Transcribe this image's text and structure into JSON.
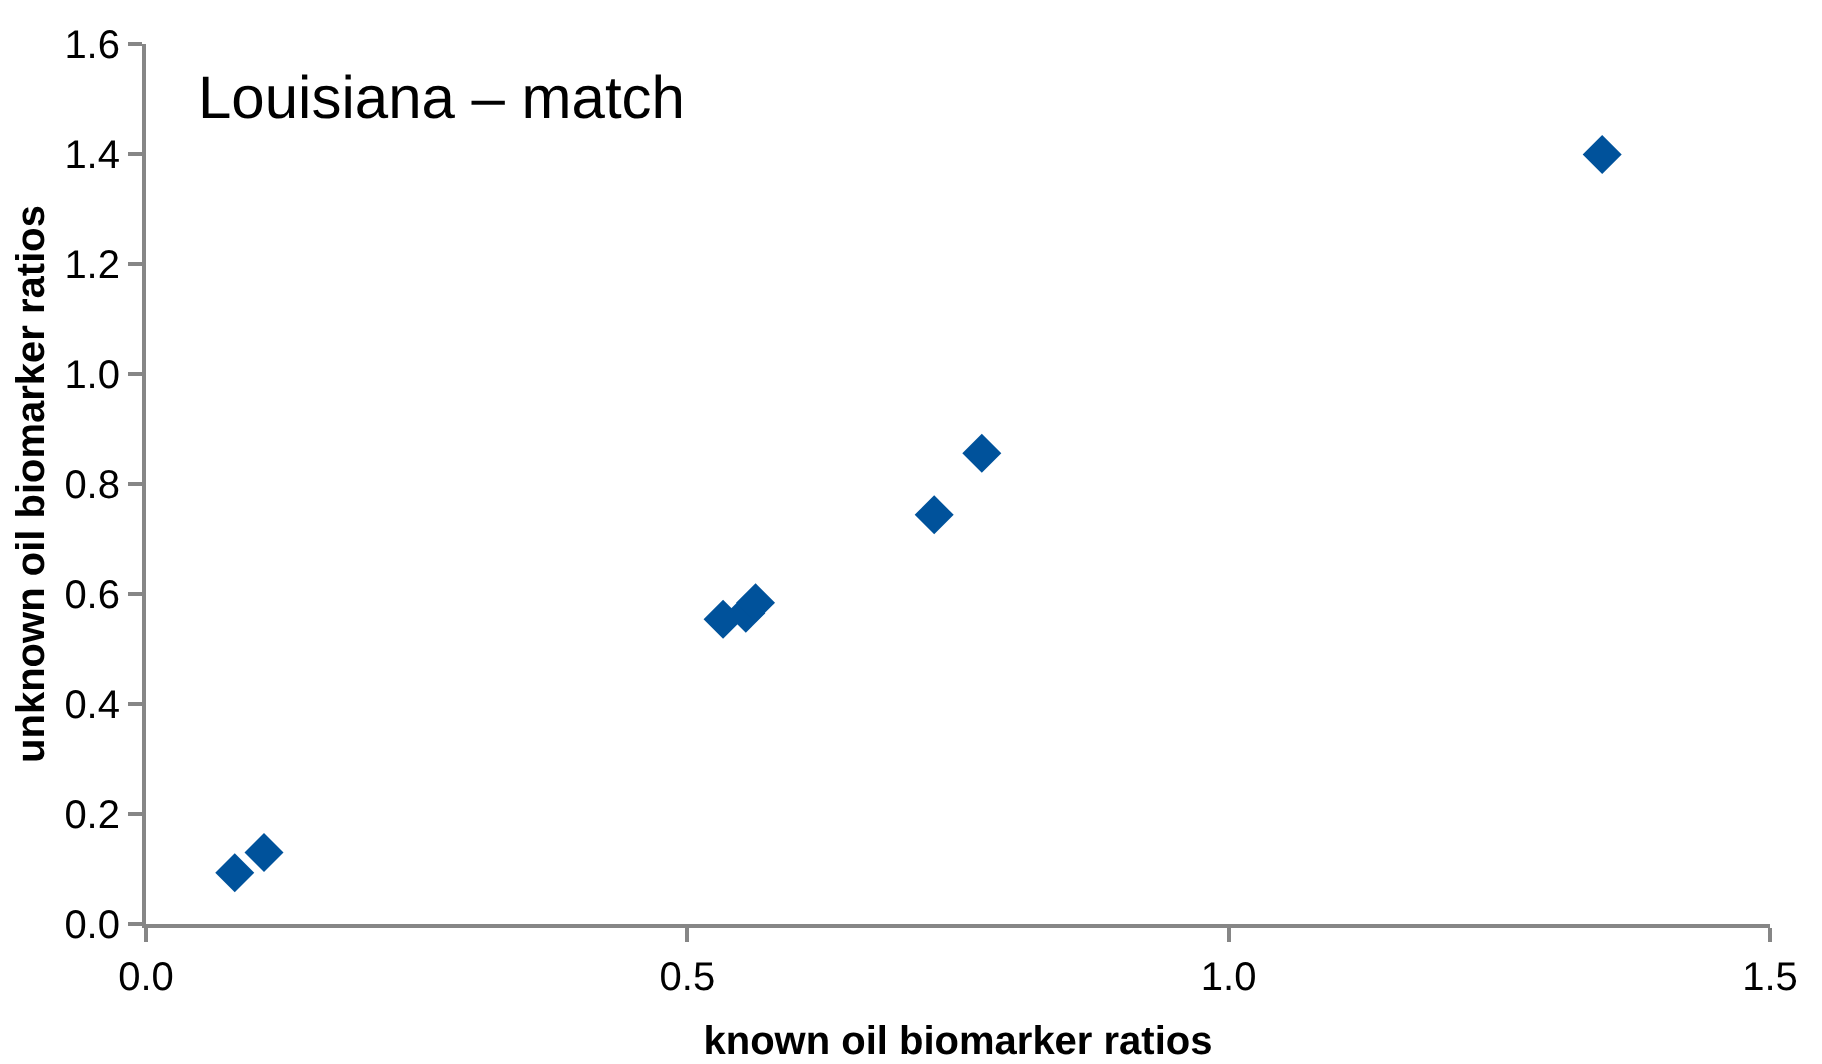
{
  "chart_data": {
    "type": "scatter",
    "title": "Louisiana – match",
    "xlabel": "known oil biomarker ratios",
    "ylabel": "unknown oil biomarker ratios",
    "x": [
      0.082,
      0.109,
      0.533,
      0.554,
      0.563,
      0.728,
      0.772,
      1.345
    ],
    "series": [
      {
        "color": "#00529b",
        "values": [
          0.093,
          0.13,
          0.554,
          0.565,
          0.584,
          0.744,
          0.856,
          1.399
        ]
      }
    ],
    "xlim": [
      0,
      1.5
    ],
    "xticks": [
      {
        "value": 0,
        "label": "0.0"
      },
      0.5,
      {
        "value": 1,
        "label": "1.0"
      },
      1.5
    ],
    "ylim": [
      0,
      1.6
    ],
    "yticks": [
      {
        "value": 0,
        "label": "0.0"
      },
      0.2,
      0.4,
      0.6,
      0.8,
      {
        "value": 1,
        "label": "1.0"
      },
      1.2,
      1.4,
      1.6
    ],
    "marker": "diamond",
    "grid": false
  }
}
